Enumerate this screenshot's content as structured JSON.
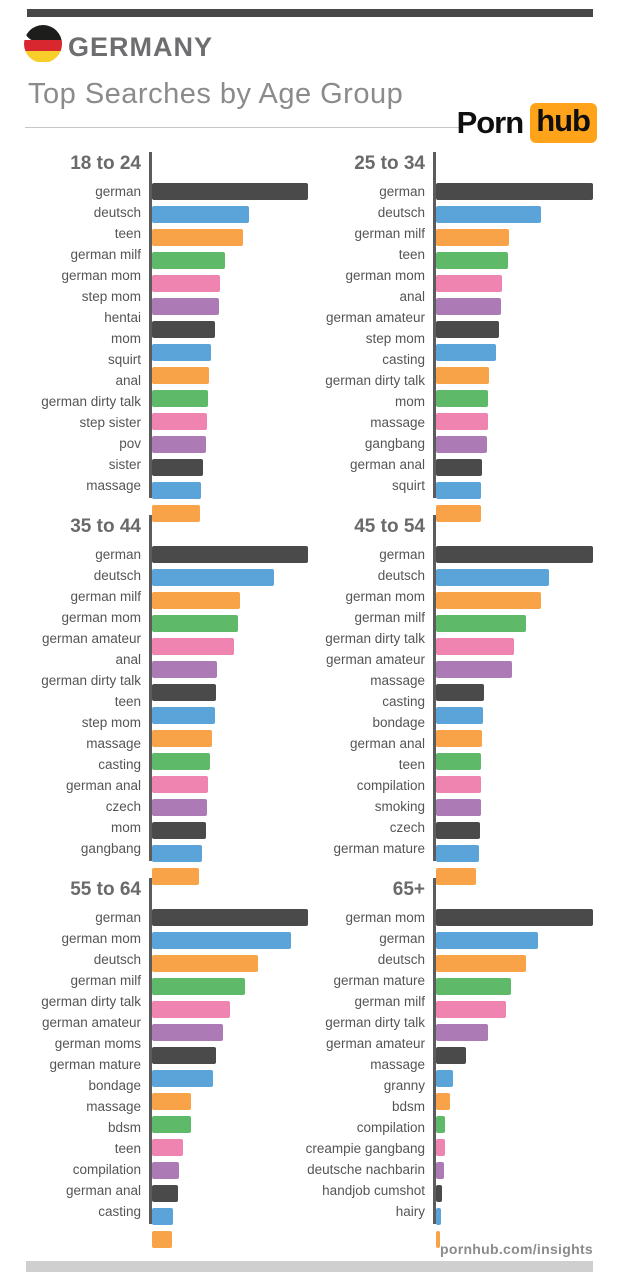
{
  "header": {
    "country": "GERMANY",
    "subtitle": "Top Searches by Age Group",
    "logo_part1": "Porn",
    "logo_part2": "hub"
  },
  "footer": {
    "url": "pornhub.com/insights"
  },
  "palette": {
    "dark": "#4a4a4b",
    "blue": "#5ba4d9",
    "orange": "#f9a349",
    "green": "#5eba69",
    "pink": "#ef84b1",
    "purple": "#ac7bb5",
    "cycle": [
      "dark",
      "blue",
      "orange",
      "green",
      "pink",
      "purple"
    ],
    "axis": "#5c5c5e",
    "brand_orange": "#ffa31a",
    "top_bar": "#474747",
    "bottom_bar": "#cfcfcf"
  },
  "chart_data": [
    {
      "type": "bar",
      "orientation": "horizontal",
      "title": "18 to 24",
      "value_unit": "relative search volume (bar length in px; chart shows no numeric axis)",
      "xlim": [
        0,
        160
      ],
      "categories": [
        "german",
        "deutsch",
        "teen",
        "german milf",
        "german mom",
        "step mom",
        "hentai",
        "mom",
        "squirt",
        "anal",
        "german dirty talk",
        "step sister",
        "pov",
        "sister",
        "massage"
      ],
      "values": [
        156,
        97,
        91,
        73,
        68,
        67,
        63,
        59,
        57,
        56,
        55,
        54,
        51,
        49,
        48
      ]
    },
    {
      "type": "bar",
      "orientation": "horizontal",
      "title": "25 to 34",
      "value_unit": "relative search volume (bar length in px; chart shows no numeric axis)",
      "xlim": [
        0,
        160
      ],
      "categories": [
        "german",
        "deutsch",
        "german milf",
        "teen",
        "german mom",
        "anal",
        "german amateur",
        "step mom",
        "casting",
        "german dirty talk",
        "mom",
        "massage",
        "gangbang",
        "german anal",
        "squirt"
      ],
      "values": [
        157,
        105,
        73,
        72,
        66,
        65,
        63,
        60,
        53,
        52,
        52,
        51,
        46,
        45,
        45
      ]
    },
    {
      "type": "bar",
      "orientation": "horizontal",
      "title": "35 to 44",
      "value_unit": "relative search volume (bar length in px; chart shows no numeric axis)",
      "xlim": [
        0,
        160
      ],
      "categories": [
        "german",
        "deutsch",
        "german milf",
        "german mom",
        "german amateur",
        "anal",
        "german dirty talk",
        "teen",
        "step mom",
        "massage",
        "casting",
        "german anal",
        "czech",
        "mom",
        "gangbang"
      ],
      "values": [
        156,
        122,
        88,
        86,
        82,
        65,
        64,
        63,
        60,
        58,
        56,
        55,
        54,
        50,
        47
      ]
    },
    {
      "type": "bar",
      "orientation": "horizontal",
      "title": "45 to 54",
      "value_unit": "relative search volume (bar length in px; chart shows no numeric axis)",
      "xlim": [
        0,
        160
      ],
      "categories": [
        "german",
        "deutsch",
        "german mom",
        "german milf",
        "german dirty talk",
        "german amateur",
        "massage",
        "casting",
        "bondage",
        "german anal",
        "teen",
        "compilation",
        "smoking",
        "czech",
        "german mature"
      ],
      "values": [
        157,
        113,
        105,
        90,
        78,
        76,
        48,
        47,
        46,
        45,
        45,
        45,
        44,
        43,
        40
      ]
    },
    {
      "type": "bar",
      "orientation": "horizontal",
      "title": "55 to 64",
      "value_unit": "relative search volume (bar length in px; chart shows no numeric axis)",
      "xlim": [
        0,
        160
      ],
      "categories": [
        "german",
        "german mom",
        "deutsch",
        "german milf",
        "german dirty talk",
        "german amateur",
        "german moms",
        "german mature",
        "bondage",
        "massage",
        "bdsm",
        "teen",
        "compilation",
        "german anal",
        "casting"
      ],
      "values": [
        156,
        139,
        106,
        93,
        78,
        71,
        64,
        61,
        39,
        39,
        31,
        27,
        26,
        21,
        20
      ]
    },
    {
      "type": "bar",
      "orientation": "horizontal",
      "title": "65+",
      "value_unit": "relative search volume (bar length in px; chart shows no numeric axis)",
      "xlim": [
        0,
        160
      ],
      "categories": [
        "german mom",
        "german",
        "deutsch",
        "german mature",
        "german milf",
        "german dirty talk",
        "german amateur",
        "massage",
        "granny",
        "bdsm",
        "compilation",
        "creampie gangbang",
        "deutsche nachbarin",
        "handjob cumshot",
        "hairy"
      ],
      "values": [
        157,
        102,
        90,
        75,
        70,
        52,
        30,
        17,
        14,
        9,
        9,
        8,
        6,
        5,
        4
      ]
    }
  ]
}
